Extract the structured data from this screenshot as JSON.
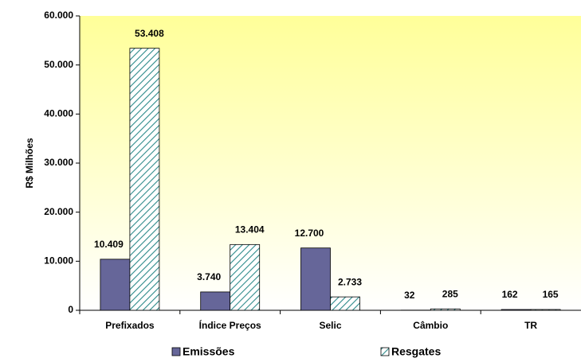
{
  "chart_data": {
    "type": "bar",
    "y_label": "R$ Milhões",
    "categories": [
      "Prefixados",
      "Índice Preços",
      "Selic",
      "Câmbio",
      "TR"
    ],
    "series": [
      {
        "name": "Emissões",
        "color": "#666699",
        "hatch": false,
        "values": [
          10409,
          3740,
          12700,
          32,
          162
        ],
        "value_labels": [
          "10.409",
          "3.740",
          "12.700",
          "32",
          "162"
        ]
      },
      {
        "name": "Resgates",
        "color": "#2e8b8b",
        "hatch": true,
        "values": [
          53408,
          13404,
          2733,
          285,
          165
        ],
        "value_labels": [
          "53.408",
          "13.404",
          "2.733",
          "285",
          "165"
        ]
      }
    ],
    "ylim": [
      0,
      60000
    ],
    "yticks": [
      {
        "value": 0,
        "label": "0"
      },
      {
        "value": 10000,
        "label": "10.000"
      },
      {
        "value": 20000,
        "label": "20.000"
      },
      {
        "value": 30000,
        "label": "30.000"
      },
      {
        "value": 40000,
        "label": "40.000"
      },
      {
        "value": 50000,
        "label": "50.000"
      },
      {
        "value": 60000,
        "label": "60.000"
      }
    ],
    "legend": "bottom"
  }
}
